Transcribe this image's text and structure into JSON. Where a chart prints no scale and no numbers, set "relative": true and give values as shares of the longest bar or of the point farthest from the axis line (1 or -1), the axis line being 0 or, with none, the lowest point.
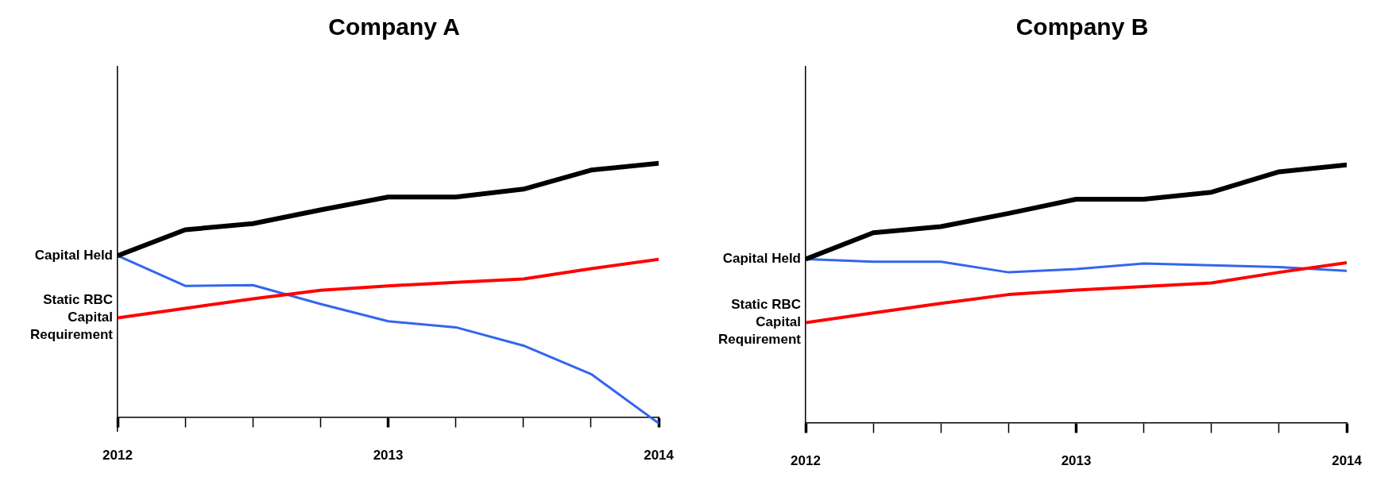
{
  "chart_data": [
    {
      "type": "line",
      "title": "Company A",
      "relative": true,
      "x": [
        2012,
        2012.25,
        2012.5,
        2012.75,
        2013,
        2013.25,
        2013.5,
        2013.75,
        2014
      ],
      "xlim": [
        2012,
        2014
      ],
      "xticks": [
        2012,
        {
          "value": 2012.25,
          "label": null
        },
        {
          "value": 2012.5,
          "label": null
        },
        {
          "value": 2012.75,
          "label": null
        },
        2013,
        {
          "value": 2013.25,
          "label": null
        },
        {
          "value": 2013.5,
          "label": null
        },
        {
          "value": 2013.75,
          "label": null
        },
        2014
      ],
      "grid": false,
      "legend": false,
      "marker": "none",
      "series": [
        {
          "name": "Capital Held",
          "color": "#000000",
          "values": [
            0.636,
            0.738,
            0.762,
            0.816,
            0.867,
            0.867,
            0.898,
            0.973,
            1
          ]
        },
        {
          "name": "Static RBC Capital Requirement",
          "color": "#ff0000",
          "values": [
            0.391,
            0.429,
            0.466,
            0.5,
            0.517,
            0.531,
            0.544,
            0.585,
            0.622
          ]
        },
        {
          "color": "#3366ee",
          "values": [
            0.636,
            0.517,
            0.52,
            0.446,
            0.378,
            0.354,
            0.282,
            0.17,
            -0.024
          ]
        }
      ]
    },
    {
      "type": "line",
      "title": "Company B",
      "relative": true,
      "x": [
        2012,
        2012.25,
        2012.5,
        2012.75,
        2013,
        2013.25,
        2013.5,
        2013.75,
        2014
      ],
      "xlim": [
        2012,
        2014
      ],
      "xticks": [
        2012,
        {
          "value": 2012.25,
          "label": null
        },
        {
          "value": 2012.5,
          "label": null
        },
        {
          "value": 2012.75,
          "label": null
        },
        2013,
        {
          "value": 2013.25,
          "label": null
        },
        {
          "value": 2013.5,
          "label": null
        },
        {
          "value": 2013.75,
          "label": null
        },
        2014
      ],
      "grid": false,
      "legend": false,
      "marker": "none",
      "series": [
        {
          "name": "Capital Held",
          "color": "#000000",
          "values": [
            0.635,
            0.737,
            0.761,
            0.812,
            0.867,
            0.867,
            0.894,
            0.973,
            1
          ]
        },
        {
          "name": "Static RBC Capital Requirement",
          "color": "#ff0000",
          "values": [
            0.389,
            0.427,
            0.464,
            0.498,
            0.515,
            0.529,
            0.543,
            0.584,
            0.621
          ]
        },
        {
          "color": "#3366ee",
          "values": [
            0.635,
            0.625,
            0.625,
            0.584,
            0.597,
            0.618,
            0.611,
            0.604,
            0.59
          ]
        }
      ]
    }
  ]
}
